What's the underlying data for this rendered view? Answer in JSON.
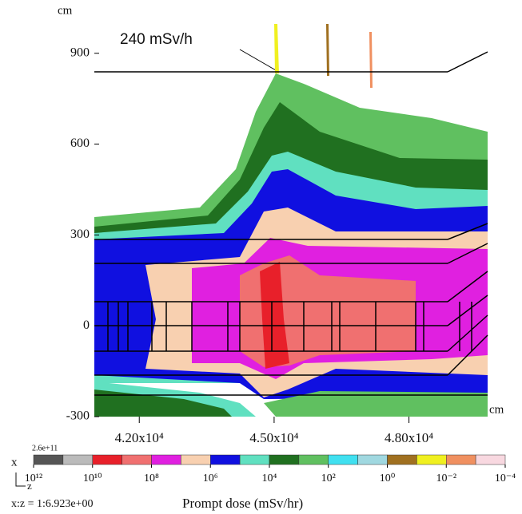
{
  "chart_data": {
    "type": "contour",
    "annotation": "240 mSv/h",
    "x_unit": "cm",
    "y_unit": "cm",
    "xlim": [
      41000,
      49750
    ],
    "ylim": [
      -300,
      1010
    ],
    "xticks": [
      {
        "value": 42000,
        "label": "4.20x10⁴"
      },
      {
        "value": 45000,
        "label": "4.50x10⁴"
      },
      {
        "value": 48000,
        "label": "4.80x10⁴"
      }
    ],
    "yticks": [
      -300,
      0,
      300,
      600,
      900
    ],
    "colorbar": {
      "max_label": "2.6e+11",
      "title": "Prompt dose (mSv/hr)",
      "lim": [
        1000000000000.0,
        0.0001
      ],
      "colors": [
        "#555555",
        "#bbbbbb",
        "#e8202a",
        "#f07070",
        "#e020e0",
        "#f8d0b0",
        "#1010e0",
        "#60e0c0",
        "#207020",
        "#60c060",
        "#40e0f0",
        "#a0d8e0",
        "#a07020",
        "#f0f020",
        "#f09060",
        "#f8d8e0"
      ],
      "ticks": [
        {
          "value": 1000000000000.0,
          "label": "10¹²"
        },
        {
          "value": 10000000000.0,
          "label": "10¹⁰"
        },
        {
          "value": 100000000.0,
          "label": "10⁸"
        },
        {
          "value": 1000000.0,
          "label": "10⁶"
        },
        {
          "value": 10000.0,
          "label": "10⁴"
        },
        {
          "value": 100,
          "label": "10²"
        },
        {
          "value": 1,
          "label": "10⁰"
        },
        {
          "value": 0.01,
          "label": "10⁻²"
        },
        {
          "value": 0.0001,
          "label": "10⁻⁴"
        }
      ]
    },
    "axis_names": {
      "x": "x",
      "z": "z"
    },
    "aspect": "x:z = 1:6.923e+00"
  }
}
